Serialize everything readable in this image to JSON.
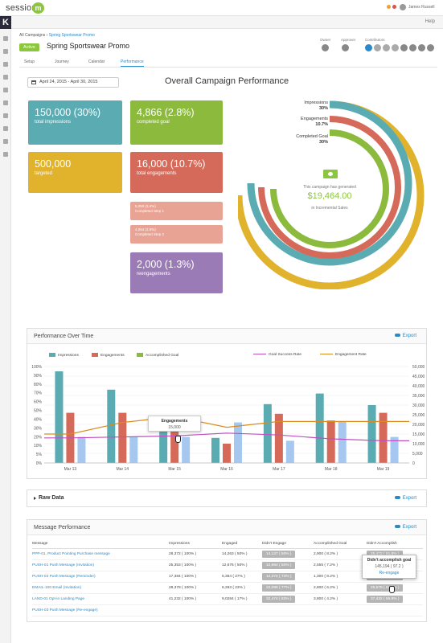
{
  "app": {
    "logo_text": "session",
    "logo_mark": "m",
    "user_name": "James Russell",
    "help_label": "Help",
    "k_logo": "K"
  },
  "breadcrumb": {
    "root": "All Campaigns",
    "current": "Spring Sportswear Promo"
  },
  "campaign": {
    "status": "Active",
    "title": "Spring Sportswear Promo"
  },
  "people": {
    "owner_label": "Owner",
    "approver_label": "Approver",
    "contributors_label": "Contributors"
  },
  "tabs": [
    {
      "label": "Setup"
    },
    {
      "label": "Journey"
    },
    {
      "label": "Calendar"
    },
    {
      "label": "Performance"
    }
  ],
  "date_range": "April 24, 2015 - April 30, 2015",
  "overview": {
    "title": "Overall Campaign Performance",
    "tiles": {
      "impressions": {
        "value": "150,000 (30%)",
        "label": "total impressions",
        "color": "#5aacb2"
      },
      "completed": {
        "value": "4,866 (2.8%)",
        "label": "completed goal",
        "color": "#8cba3d"
      },
      "targeted": {
        "value": "500,000",
        "label": "targeted",
        "color": "#e1b22c"
      },
      "engagements": {
        "value": "16,000 (10.7%)",
        "label": "total engagements",
        "color": "#d66a5a"
      },
      "step1": {
        "value": "5,050 (3.4%)",
        "label": "Completed Step 1"
      },
      "step2": {
        "value": "4,054 (2.5%)",
        "label": "Completed Step 2"
      },
      "reengagements": {
        "value": "2,000 (1.3%)",
        "label": "reengagements",
        "color": "#9b7bb5"
      }
    },
    "rings": {
      "impressions": {
        "label": "Impressions",
        "pct": "30%"
      },
      "engagements": {
        "label": "Engagements",
        "pct": "10.7%"
      },
      "completed": {
        "label": "Completed Goal",
        "pct": "30%"
      }
    },
    "center": {
      "line1": "This campaign has generated",
      "value": "$19,464.00",
      "line2": "in Incremental Sales"
    }
  },
  "performance_over_time": {
    "title": "Performance Over Time",
    "export_label": "Export",
    "legend": {
      "impressions": "Impressions",
      "engagements": "Engagements",
      "goal": "Accomplished Goal",
      "success_rate": "Goal Success Rate",
      "engagement_rate": "Engagement Rate"
    },
    "tooltip": {
      "title": "Engagements",
      "value": "15,000"
    }
  },
  "chart_data": {
    "type": "bar",
    "categories": [
      "Mar 13",
      "Mar 14",
      "Mar 15",
      "Mar 16",
      "Mar 17",
      "Mar 18",
      "Mar 19"
    ],
    "series": [
      {
        "name": "Impressions",
        "kind": "bar",
        "color": "#5aacb2",
        "values": [
          95,
          76,
          45,
          26,
          61,
          72,
          60
        ]
      },
      {
        "name": "Engagements",
        "kind": "bar",
        "color": "#d66a5a",
        "values": [
          52,
          52,
          41,
          20,
          51,
          44,
          52
        ]
      },
      {
        "name": "Accomplished Goal",
        "kind": "bar",
        "color": "#a6c8f0",
        "values": [
          27,
          27,
          27,
          42,
          23,
          43,
          27
        ]
      },
      {
        "name": "Goal Success Rate",
        "kind": "line",
        "color": "#c050c0",
        "values": [
          26,
          27,
          28,
          31,
          29,
          25,
          23
        ]
      },
      {
        "name": "Engagement Rate",
        "kind": "line",
        "color": "#d98c1c",
        "values": [
          30,
          42,
          48,
          37,
          43,
          43,
          43
        ]
      }
    ],
    "ylim": [
      0,
      100
    ],
    "yticks": [
      "0%",
      "5%",
      "10%",
      "20%",
      "30%",
      "40%",
      "50%",
      "60%",
      "70%",
      "80%",
      "90%",
      "100%"
    ],
    "y2ticks": [
      "0",
      "5,000",
      "10,000",
      "15,000",
      "20,000",
      "25,000",
      "30,000",
      "35,000",
      "40,000",
      "45,000",
      "50,000"
    ],
    "legend_position": "top"
  },
  "raw_data": {
    "title": "Raw Data",
    "export_label": "Export"
  },
  "message_performance": {
    "title": "Message Performance",
    "export_label": "Export",
    "columns": [
      "Message",
      "Impressions",
      "Engaged",
      "Didn't Engage",
      "Accomplished Goal",
      "Didn't Accomplish"
    ],
    "rows": [
      {
        "message": "PPP-01, Product Pointing Purchase message",
        "impressions": "28,372 ( 100% )",
        "engaged": "14,263 ( 50% )",
        "didnt_engage": "14,127 ( 50% )",
        "goal": "2,900 ( 8.2% )",
        "didnt_goal": "25,472 ( 91.8% )"
      },
      {
        "message": "PUSH-01 Push Message (Invitation)",
        "impressions": "25,353 ( 100% )",
        "engaged": "12,676 ( 50% )",
        "didnt_engage": "12,664 ( 50% )",
        "goal": "2,555 ( 7.2% )",
        "didnt_goal": "22,798 ( 92.8% )"
      },
      {
        "message": "PUSH-02 Push Message (Reminder)",
        "impressions": "17,384 ( 100% )",
        "engaged": "5,384 ( 27% )",
        "didnt_engage": "12,374 ( 73% )",
        "goal": "1,300 ( 8.2% )",
        "didnt_goal": "16,084 ( 91.8% )"
      },
      {
        "message": "EMAIL-100 Email (Invitation)",
        "impressions": "28,378 ( 100% )",
        "engaged": "6,283 ( 23% )",
        "didnt_engage": "22,095 ( 77% )",
        "goal": "2,800 ( 6.2% )",
        "didnt_goal": "25,578 ( 93.8% )"
      },
      {
        "message": "LAND-01 Opt-in Landing Page",
        "impressions": "41,232 ( 100% )",
        "engaged": "9,0284 ( 17% )",
        "didnt_engage": "32,474 ( 83% )",
        "goal": "3,800 ( 4.2% )",
        "didnt_goal": "37,432 ( 95.8% )"
      },
      {
        "message": "PUSH-03 Push Message (Re-engage)",
        "impressions": "",
        "engaged": "",
        "didnt_engage": "",
        "goal": "",
        "didnt_goal": ""
      }
    ],
    "popup": {
      "title": "Didn't accomplish goal",
      "value": "145,194 ( 97.2 )",
      "action": "Re-engage"
    }
  }
}
